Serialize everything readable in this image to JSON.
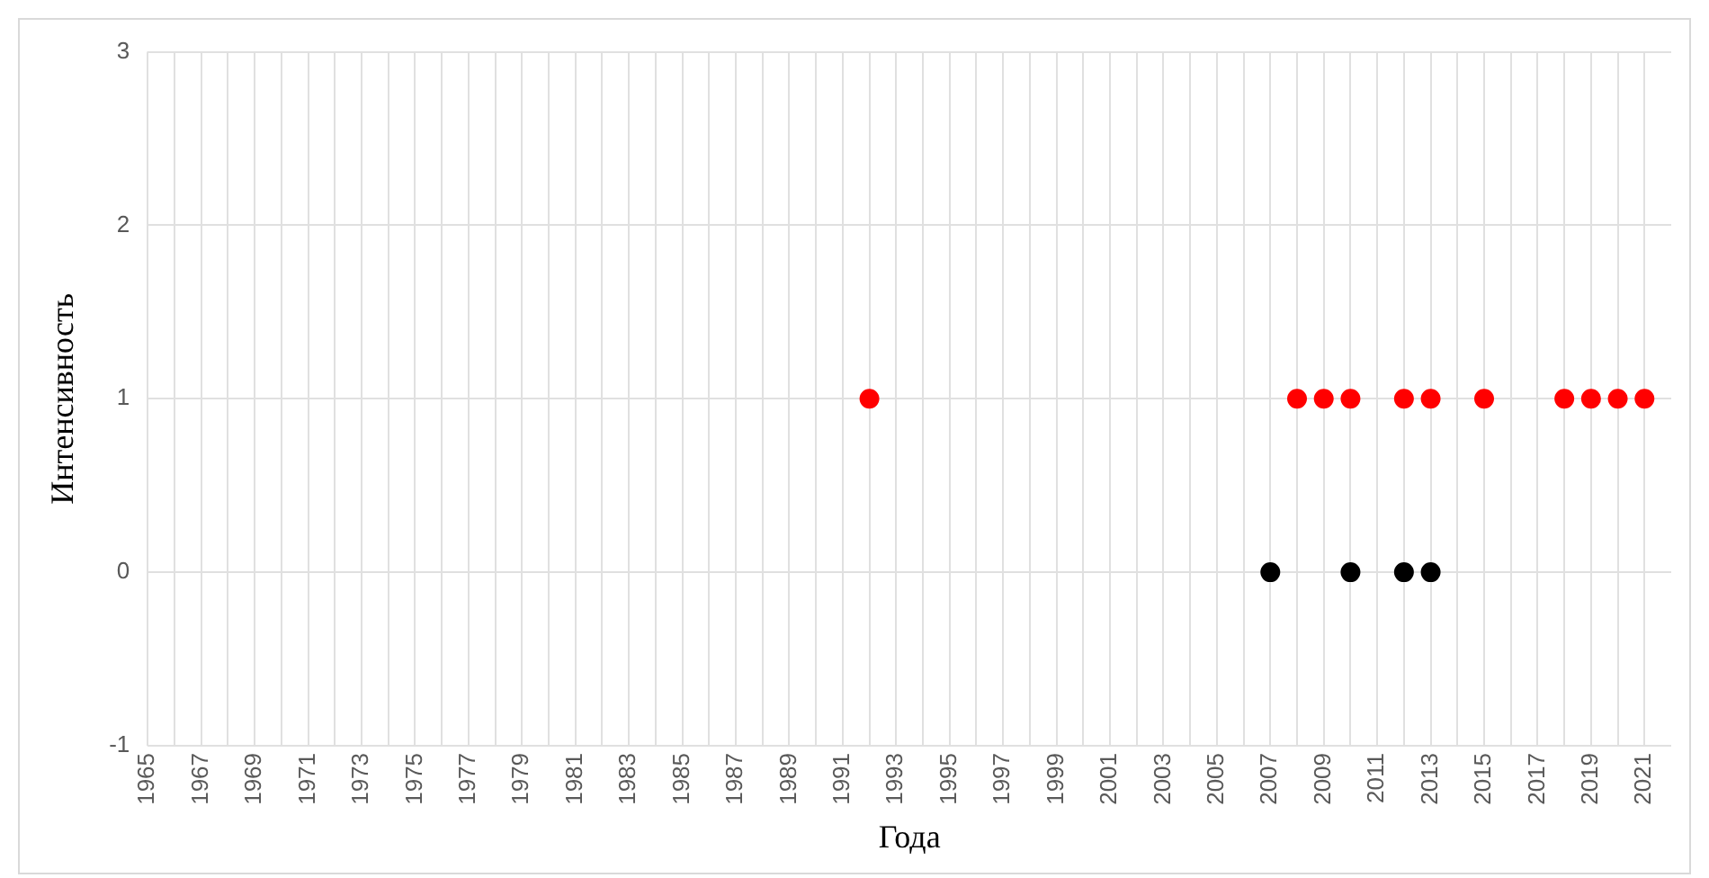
{
  "chart_data": {
    "type": "scatter",
    "xlabel": "Года",
    "ylabel": "Интенсивность",
    "xlim": [
      1965,
      2022
    ],
    "xticks": [
      1965,
      {
        "value": 1966,
        "label": null
      },
      1967,
      {
        "value": 1968,
        "label": null
      },
      1969,
      {
        "value": 1970,
        "label": null
      },
      1971,
      {
        "value": 1972,
        "label": null
      },
      1973,
      {
        "value": 1974,
        "label": null
      },
      1975,
      {
        "value": 1976,
        "label": null
      },
      1977,
      {
        "value": 1978,
        "label": null
      },
      1979,
      {
        "value": 1980,
        "label": null
      },
      1981,
      {
        "value": 1982,
        "label": null
      },
      1983,
      {
        "value": 1984,
        "label": null
      },
      1985,
      {
        "value": 1986,
        "label": null
      },
      1987,
      {
        "value": 1988,
        "label": null
      },
      1989,
      {
        "value": 1990,
        "label": null
      },
      1991,
      {
        "value": 1992,
        "label": null
      },
      1993,
      {
        "value": 1994,
        "label": null
      },
      1995,
      {
        "value": 1996,
        "label": null
      },
      1997,
      {
        "value": 1998,
        "label": null
      },
      1999,
      {
        "value": 2000,
        "label": null
      },
      2001,
      {
        "value": 2002,
        "label": null
      },
      2003,
      {
        "value": 2004,
        "label": null
      },
      2005,
      {
        "value": 2006,
        "label": null
      },
      2007,
      {
        "value": 2008,
        "label": null
      },
      2009,
      {
        "value": 2010,
        "label": null
      },
      2011,
      {
        "value": 2012,
        "label": null
      },
      2013,
      {
        "value": 2014,
        "label": null
      },
      2015,
      {
        "value": 2016,
        "label": null
      },
      2017,
      {
        "value": 2018,
        "label": null
      },
      2019,
      {
        "value": 2020,
        "label": null
      },
      2021
    ],
    "ylim": [
      -1,
      3
    ],
    "yticks": [
      -1,
      0,
      1,
      2,
      3
    ],
    "grid": true,
    "legend": false,
    "marker": "circle",
    "series": [
      {
        "color": "#ff0000",
        "x": [
          1992,
          2008,
          2009,
          2010,
          2012,
          2013,
          2015,
          2018,
          2019,
          2020,
          2021
        ],
        "values": [
          1,
          1,
          1,
          1,
          1,
          1,
          1,
          1,
          1,
          1,
          1
        ]
      },
      {
        "color": "#000000",
        "x": [
          2007,
          2010,
          2012,
          2013
        ],
        "values": [
          0,
          0,
          0,
          0
        ]
      }
    ]
  }
}
